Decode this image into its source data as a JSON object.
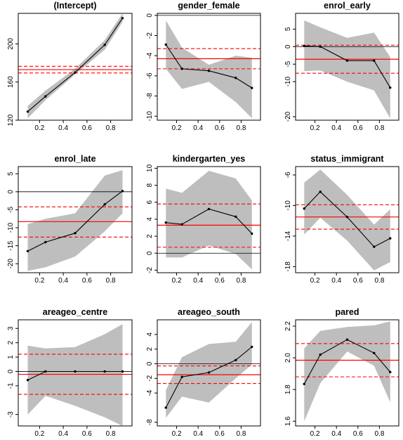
{
  "chart_data": [
    {
      "type": "line",
      "title": "(Intercept)",
      "x": [
        0.1,
        0.25,
        0.5,
        0.75,
        0.9
      ],
      "y": [
        129,
        145,
        170,
        199,
        227
      ],
      "band_lower": [
        122,
        141,
        168,
        194,
        223
      ],
      "band_upper": [
        135,
        151,
        174,
        204,
        232
      ],
      "ols": 173,
      "ols_ci": [
        169.5,
        176.5
      ],
      "xlim": [
        0.02,
        0.98
      ],
      "ylim": [
        120,
        232
      ],
      "xticks": [
        "0.2",
        "0.4",
        "0.6",
        "0.8"
      ],
      "yticks": [
        "120",
        "160",
        "200"
      ],
      "zero_line": false
    },
    {
      "type": "line",
      "title": "gender_female",
      "x": [
        0.1,
        0.25,
        0.5,
        0.75,
        0.9
      ],
      "y": [
        -2.9,
        -5.3,
        -5.5,
        -6.2,
        -7.2
      ],
      "band_lower": [
        -5.3,
        -7.3,
        -6.6,
        -8.6,
        -10.2
      ],
      "band_upper": [
        -0.5,
        -3.2,
        -4.9,
        -4.0,
        -4.2
      ],
      "ols": -4.3,
      "ols_ci": [
        -3.3,
        -5.3
      ],
      "xlim": [
        0.02,
        0.98
      ],
      "ylim": [
        -10.4,
        0.2
      ],
      "xticks": [
        "0.2",
        "0.4",
        "0.6",
        "0.8"
      ],
      "yticks": [
        "-10",
        "-8",
        "-6",
        "-4",
        "-2",
        "0"
      ],
      "zero_line": true
    },
    {
      "type": "line",
      "title": "enrol_early",
      "x": [
        0.1,
        0.25,
        0.5,
        0.75,
        0.9
      ],
      "y": [
        0.2,
        0.0,
        -4.0,
        -4.0,
        -11.7
      ],
      "band_lower": [
        -7.0,
        -6.8,
        -10.0,
        -12.5,
        -20.5
      ],
      "band_upper": [
        7.5,
        5.5,
        2.5,
        4.0,
        -3.0
      ],
      "ols": -3.6,
      "ols_ci": [
        0.4,
        -7.6
      ],
      "xlim": [
        0.02,
        0.98
      ],
      "ylim": [
        -21,
        9.5
      ],
      "xticks": [
        "0.2",
        "0.4",
        "0.6",
        "0.8"
      ],
      "yticks": [
        "-20",
        "-10",
        "-5",
        "0",
        "5"
      ],
      "zero_line": true
    },
    {
      "type": "line",
      "title": "enrol_late",
      "x": [
        0.1,
        0.25,
        0.5,
        0.75,
        0.9
      ],
      "y": [
        -16.5,
        -14,
        -11.5,
        -3.5,
        0.2
      ],
      "band_lower": [
        -22,
        -21,
        -18,
        -11,
        -6
      ],
      "band_upper": [
        -9,
        -7.5,
        -6,
        4.5,
        6
      ],
      "ols": -8.3,
      "ols_ci": [
        -4.2,
        -12.6
      ],
      "xlim": [
        0.02,
        0.98
      ],
      "ylim": [
        -22.5,
        7
      ],
      "xticks": [
        "0.2",
        "0.4",
        "0.6",
        "0.8"
      ],
      "yticks": [
        "-20",
        "-15",
        "-10",
        "-5",
        "0",
        "5"
      ],
      "zero_line": true
    },
    {
      "type": "line",
      "title": "kindergarten_yes",
      "x": [
        0.1,
        0.25,
        0.5,
        0.75,
        0.9
      ],
      "y": [
        3.6,
        3.4,
        5.2,
        4.3,
        2.3
      ],
      "band_lower": [
        -0.5,
        -0.5,
        0.9,
        -0.1,
        -1.9
      ],
      "band_upper": [
        7.6,
        7.1,
        9.7,
        8.8,
        6.2
      ],
      "ols": 3.3,
      "ols_ci": [
        5.8,
        0.7
      ],
      "xlim": [
        0.02,
        0.98
      ],
      "ylim": [
        -2.3,
        10.2
      ],
      "xticks": [
        "0.2",
        "0.4",
        "0.6",
        "0.8"
      ],
      "yticks": [
        "-2",
        "0",
        "2",
        "4",
        "6",
        "8",
        "10"
      ],
      "zero_line": true
    },
    {
      "type": "line",
      "title": "status_immigrant",
      "x": [
        0.1,
        0.25,
        0.5,
        0.75,
        0.9
      ],
      "y": [
        -10.4,
        -8.2,
        -11.5,
        -15.4,
        -14.3
      ],
      "band_lower": [
        -13.8,
        -11.6,
        -14.6,
        -18.5,
        -17.4
      ],
      "band_upper": [
        -7.0,
        -5.3,
        -8.6,
        -12.5,
        -10.5
      ],
      "ols": -11.5,
      "ols_ci": [
        -9.9,
        -13.1
      ],
      "xlim": [
        0.02,
        0.98
      ],
      "ylim": [
        -18.8,
        -4.9
      ],
      "xticks": [
        "0.2",
        "0.4",
        "0.6",
        "0.8"
      ],
      "yticks": [
        "-18",
        "-14",
        "-10",
        "-6"
      ],
      "zero_line": false
    },
    {
      "type": "line",
      "title": "areageo_centre",
      "x": [
        0.1,
        0.25,
        0.5,
        0.75,
        0.9
      ],
      "y": [
        -0.6,
        0.0,
        0.0,
        0.0,
        0.0
      ],
      "band_lower": [
        -3.0,
        -1.7,
        -2.4,
        -3.2,
        -3.8
      ],
      "band_upper": [
        1.8,
        1.6,
        1.7,
        2.6,
        3.3
      ],
      "ols": -0.2,
      "ols_ci": [
        1.2,
        -1.6
      ],
      "xlim": [
        0.02,
        0.98
      ],
      "ylim": [
        -3.8,
        3.6
      ],
      "xticks": [
        "0.2",
        "0.4",
        "0.6",
        "0.8"
      ],
      "yticks": [
        "-3",
        "-1",
        "0",
        "1",
        "2",
        "3"
      ],
      "zero_line": true
    },
    {
      "type": "line",
      "title": "areageo_south",
      "x": [
        0.1,
        0.25,
        0.5,
        0.75,
        0.9
      ],
      "y": [
        -6.0,
        -1.8,
        -1.2,
        0.5,
        2.3
      ],
      "band_lower": [
        -7.4,
        -4.5,
        -5.3,
        -2.0,
        -0.1
      ],
      "band_upper": [
        -3.6,
        0.9,
        2.7,
        3.0,
        5.7
      ],
      "ols": -1.5,
      "ols_ci": [
        -0.3,
        -2.7
      ],
      "xlim": [
        0.02,
        0.98
      ],
      "ylim": [
        -8.5,
        6.0
      ],
      "xticks": [
        "0.2",
        "0.4",
        "0.6",
        "0.8"
      ],
      "yticks": [
        "-8",
        "-4",
        "-2",
        "0",
        "2",
        "4"
      ],
      "zero_line": true
    },
    {
      "type": "line",
      "title": "pared",
      "x": [
        0.1,
        0.25,
        0.5,
        0.75,
        0.9
      ],
      "y": [
        1.835,
        2.02,
        2.115,
        2.03,
        1.91
      ],
      "band_lower": [
        1.6,
        1.84,
        2.04,
        1.95,
        1.72
      ],
      "band_upper": [
        2.06,
        2.17,
        2.195,
        2.205,
        2.23
      ],
      "ols": 1.985,
      "ols_ci": [
        2.09,
        1.88
      ],
      "xlim": [
        0.02,
        0.98
      ],
      "ylim": [
        1.57,
        2.24
      ],
      "xticks": [
        "0.2",
        "0.4",
        "0.6",
        "0.8"
      ],
      "yticks": [
        "1.6",
        "1.8",
        "2.0",
        "2.2"
      ],
      "zero_line": false
    }
  ]
}
